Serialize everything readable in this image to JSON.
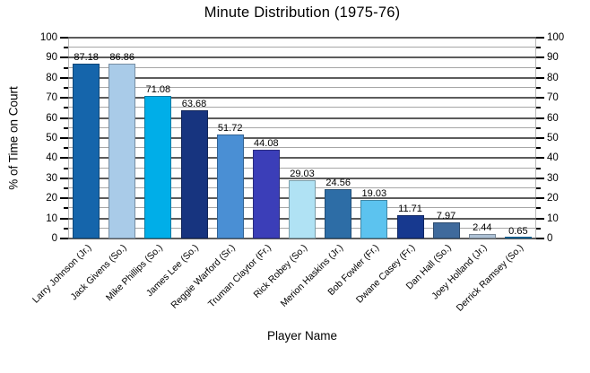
{
  "chart_data": {
    "type": "bar",
    "title": "Minute Distribution (1975-76)",
    "xlabel": "Player Name",
    "ylabel": "% of Time on Court",
    "ylim": [
      0,
      100
    ],
    "ytick_major": 10,
    "ytick_minor": 5,
    "grid": true,
    "legend": false,
    "categories": [
      "Larry Johnson (Jr.)",
      "Jack Givens (So.)",
      "Mike Phillips (So.)",
      "James Lee (So.)",
      "Reggie Warford (Sr.)",
      "Truman Claytor (Fr.)",
      "Rick Robey (So.)",
      "Merion Haskins (Jr.)",
      "Bob Fowler (Fr.)",
      "Dwane Casey (Fr.)",
      "Dan Hall (So.)",
      "Joey Holland (Jr.)",
      "Derrick Ramsey (So.)"
    ],
    "values": [
      87.18,
      86.86,
      71.08,
      63.68,
      51.72,
      44.08,
      29.03,
      24.56,
      19.03,
      11.71,
      7.97,
      2.44,
      0.65
    ],
    "value_labels": [
      "87.18",
      "86.86",
      "71.08",
      "63.68",
      "51.72",
      "44.08",
      "29.03",
      "24.56",
      "19.03",
      "11.71",
      "7.97",
      "2.44",
      "0.65"
    ],
    "bar_colors": [
      "#1565ab",
      "#a9cbe8",
      "#00aee8",
      "#17347f",
      "#4a8fd4",
      "#3b3eb8",
      "#b0e2f4",
      "#2d6da6",
      "#5cc3ef",
      "#17398f",
      "#3f6a9c",
      "#aec2d6",
      "#1b85c6"
    ],
    "gridline_major_color": "#5c5c5c",
    "gridline_minor_color": "#a6a6a6",
    "axis_edge_color": "#b8b8b8",
    "tick_color": "#000000",
    "text_color": "#000000",
    "background_color": "#ffffff"
  }
}
